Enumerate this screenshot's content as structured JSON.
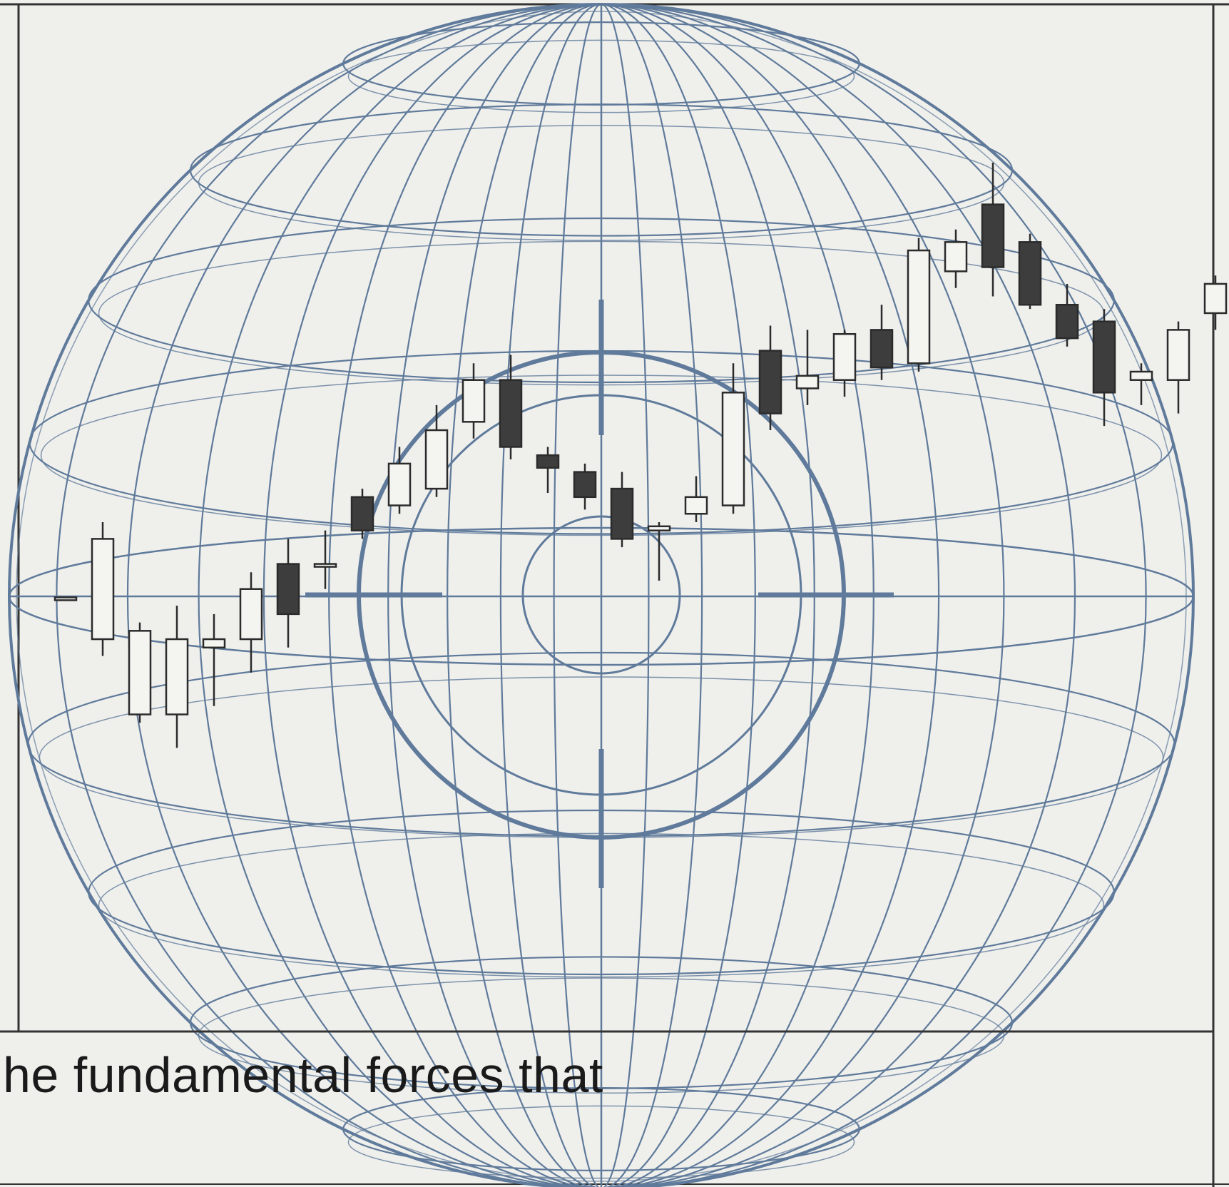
{
  "colors": {
    "background": "#efefec",
    "frame": "#333333",
    "globe": "#5f7a9a",
    "candle_up_fill": "#f4f4f1",
    "candle_down_fill": "#3d3d3d",
    "candle_stroke": "#2b2b2b",
    "caption_text": "#1a1a1a"
  },
  "caption": {
    "text": "he fundamental forces that"
  },
  "chart_data": {
    "type": "candlestick",
    "title": "",
    "xlabel": "",
    "ylabel": "",
    "axes_labels_shown": false,
    "grid": "globe wireframe with concentric target rings",
    "ylim": [
      0,
      100
    ],
    "candles": [
      {
        "i": 0,
        "open": 48.0,
        "close": 48.0,
        "high": 48.0,
        "low": 48.0
      },
      {
        "i": 1,
        "open": 43.0,
        "close": 55.0,
        "high": 57.0,
        "low": 41.0
      },
      {
        "i": 2,
        "open": 34.0,
        "close": 44.0,
        "high": 45.0,
        "low": 33.0
      },
      {
        "i": 3,
        "open": 34.0,
        "close": 43.0,
        "high": 47.0,
        "low": 30.0
      },
      {
        "i": 4,
        "open": 42.0,
        "close": 43.0,
        "high": 46.0,
        "low": 35.0
      },
      {
        "i": 5,
        "open": 43.0,
        "close": 49.0,
        "high": 51.0,
        "low": 39.0
      },
      {
        "i": 6,
        "open": 52.0,
        "close": 46.0,
        "high": 55.0,
        "low": 42.0
      },
      {
        "i": 7,
        "open": 52.0,
        "close": 52.0,
        "high": 56.0,
        "low": 49.0
      },
      {
        "i": 8,
        "open": 60.0,
        "close": 56.0,
        "high": 61.0,
        "low": 55.0
      },
      {
        "i": 9,
        "open": 59.0,
        "close": 64.0,
        "high": 66.0,
        "low": 58.0
      },
      {
        "i": 10,
        "open": 61.0,
        "close": 68.0,
        "high": 71.0,
        "low": 60.0
      },
      {
        "i": 11,
        "open": 69.0,
        "close": 74.0,
        "high": 76.0,
        "low": 67.0
      },
      {
        "i": 12,
        "open": 74.0,
        "close": 66.0,
        "high": 77.0,
        "low": 64.5
      },
      {
        "i": 13,
        "open": 65.0,
        "close": 63.5,
        "high": 66.0,
        "low": 60.5
      },
      {
        "i": 14,
        "open": 63.0,
        "close": 60.0,
        "high": 64.0,
        "low": 58.5
      },
      {
        "i": 15,
        "open": 61.0,
        "close": 55.0,
        "high": 63.0,
        "low": 54.0
      },
      {
        "i": 16,
        "open": 56.0,
        "close": 56.5,
        "high": 57.0,
        "low": 50.0
      },
      {
        "i": 17,
        "open": 58.0,
        "close": 60.0,
        "high": 62.5,
        "low": 57.0
      },
      {
        "i": 18,
        "open": 59.0,
        "close": 72.5,
        "high": 76.0,
        "low": 58.0
      },
      {
        "i": 19,
        "open": 77.5,
        "close": 70.0,
        "high": 80.5,
        "low": 68.0
      },
      {
        "i": 20,
        "open": 73.0,
        "close": 74.5,
        "high": 80.0,
        "low": 71.0
      },
      {
        "i": 21,
        "open": 74.0,
        "close": 79.5,
        "high": 80.0,
        "low": 72.0
      },
      {
        "i": 22,
        "open": 80.0,
        "close": 75.5,
        "high": 83.0,
        "low": 74.0
      },
      {
        "i": 23,
        "open": 76.0,
        "close": 89.5,
        "high": 91.0,
        "low": 75.0
      },
      {
        "i": 24,
        "open": 87.0,
        "close": 90.5,
        "high": 92.0,
        "low": 85.0
      },
      {
        "i": 25,
        "open": 95.0,
        "close": 87.5,
        "high": 100.0,
        "low": 84.0
      },
      {
        "i": 26,
        "open": 90.5,
        "close": 83.0,
        "high": 91.5,
        "low": 82.5
      },
      {
        "i": 27,
        "open": 83.0,
        "close": 79.0,
        "high": 85.5,
        "low": 78.0
      },
      {
        "i": 28,
        "open": 81.0,
        "close": 72.5,
        "high": 82.5,
        "low": 68.5
      },
      {
        "i": 29,
        "open": 74.0,
        "close": 75.0,
        "high": 76.0,
        "low": 71.0
      },
      {
        "i": 30,
        "open": 74.0,
        "close": 80.0,
        "high": 81.0,
        "low": 70.0
      },
      {
        "i": 31,
        "open": 82.0,
        "close": 85.5,
        "high": 86.5,
        "low": 80.0
      }
    ]
  }
}
